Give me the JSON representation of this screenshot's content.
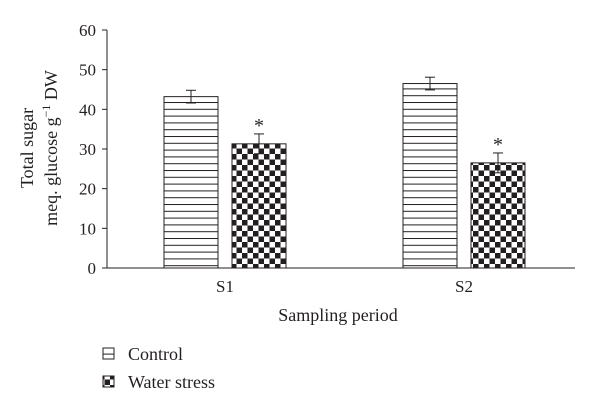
{
  "chart_data": {
    "type": "bar",
    "title": "",
    "xlabel": "Sampling period",
    "ylabel_line1": "Total sugar",
    "ylabel_line2_main": "meq. glucose g",
    "ylabel_line2_sup": "−1",
    "ylabel_line2_end": " DW",
    "categories": [
      "S1",
      "S2"
    ],
    "ylim": [
      0,
      60
    ],
    "yticks": [
      0,
      10,
      20,
      30,
      40,
      50,
      60
    ],
    "series": [
      {
        "name": "Control",
        "values": [
          43.2,
          46.5
        ],
        "errors": [
          1.6,
          1.6
        ],
        "pattern": "horizontal-lines",
        "significance": [
          "",
          ""
        ]
      },
      {
        "name": "Water stress",
        "values": [
          31.3,
          26.5
        ],
        "errors": [
          2.5,
          2.5
        ],
        "pattern": "checkerboard",
        "significance": [
          "*",
          "*"
        ]
      }
    ],
    "grid": false,
    "legend_position": "bottom-left",
    "colors": {
      "ink": "#231f20",
      "background": "#ffffff"
    }
  }
}
